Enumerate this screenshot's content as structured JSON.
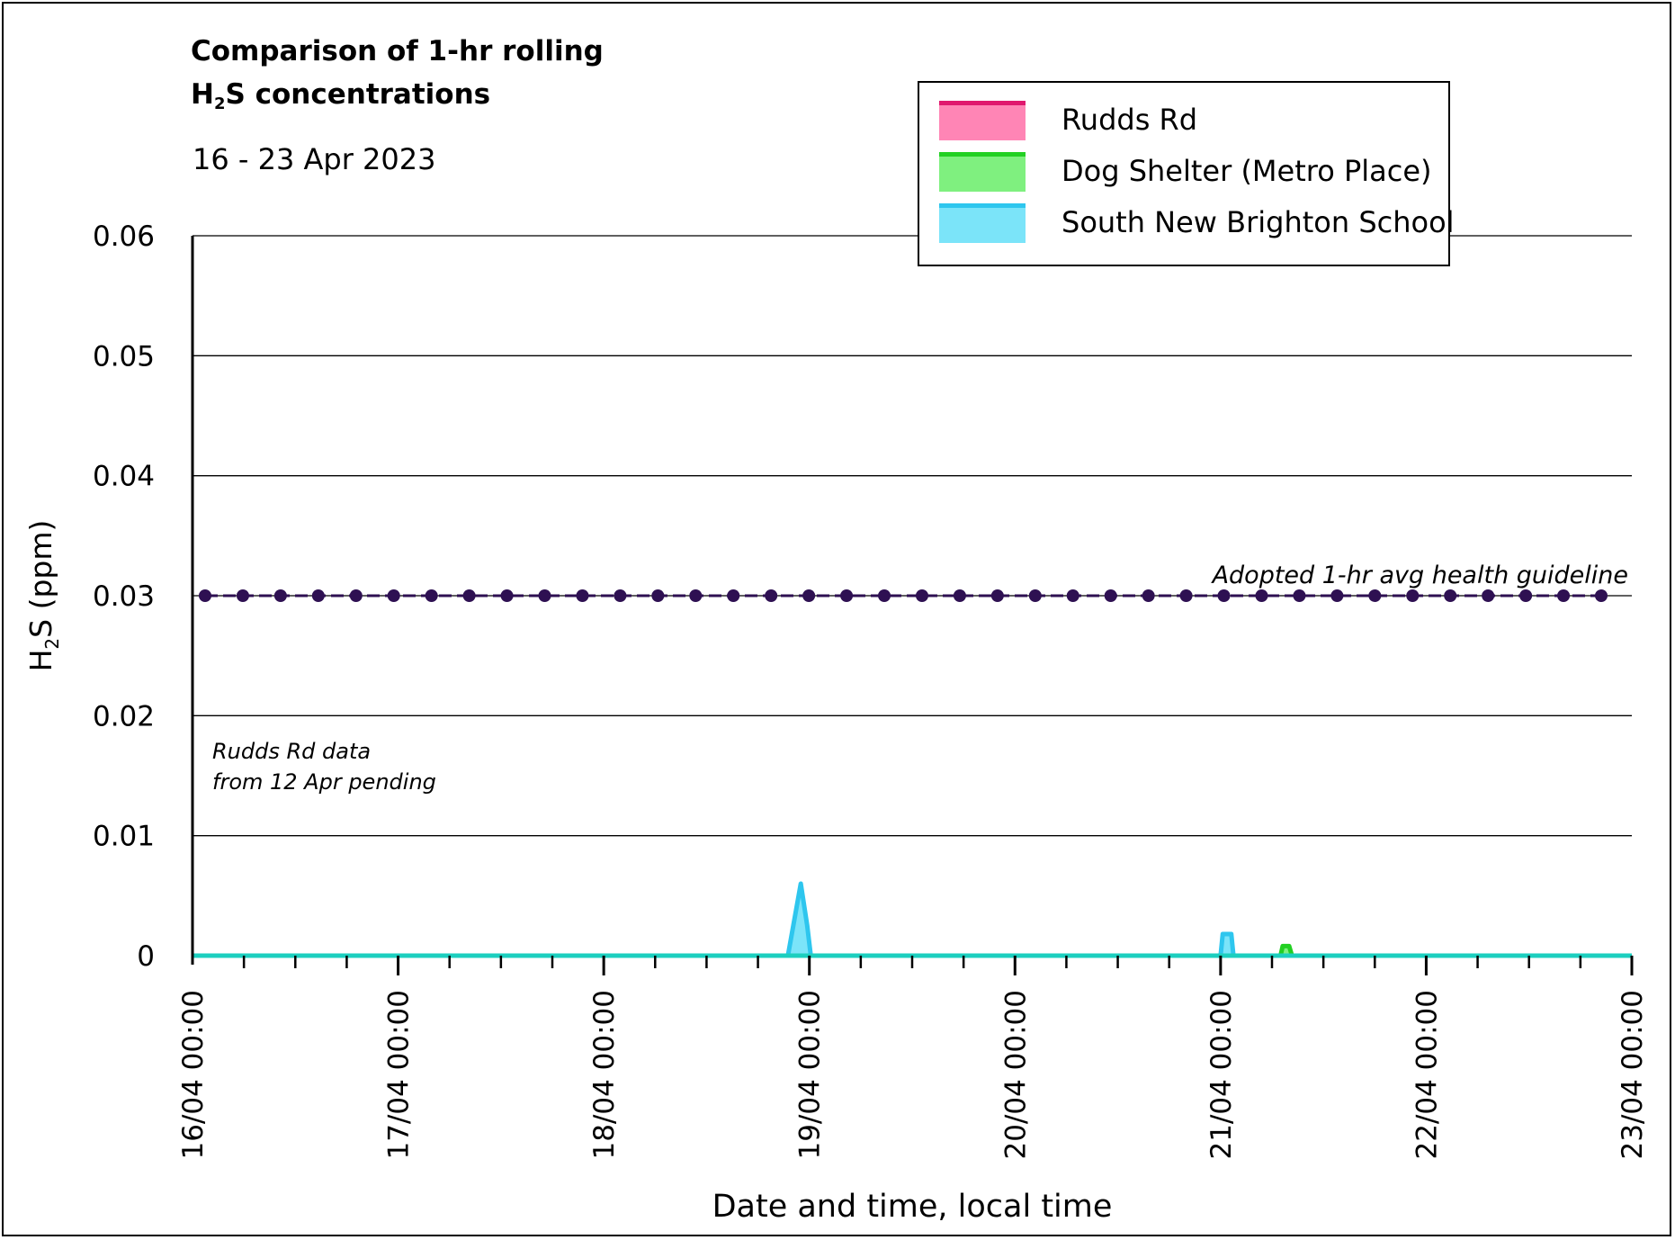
{
  "title_line1": "Comparison of 1-hr rolling",
  "title_line2_prefix": "H",
  "title_line2_sub": "2",
  "title_line2_suffix": "S concentrations",
  "subtitle": "16 - 23 Apr 2023",
  "legend": [
    {
      "label": "Rudds Rd",
      "line_color": "#e0186e",
      "fill_color": "#ff85b5"
    },
    {
      "label": "Dog Shelter (Metro Place)",
      "line_color": "#22d022",
      "fill_color": "#7ff07f"
    },
    {
      "label": "South New Brighton School",
      "line_color": "#2ec6ee",
      "fill_color": "#7be4f9"
    }
  ],
  "chart_data": {
    "type": "area",
    "xlabel": "Date and time, local time",
    "ylabel_prefix": "H",
    "ylabel_sub": "2",
    "ylabel_suffix": "S (ppm)",
    "ylim": [
      0,
      0.06
    ],
    "xlim": [
      "2023-04-16 00:00",
      "2023-04-23 00:00"
    ],
    "y_ticks": [
      "0",
      "0.01",
      "0.02",
      "0.03",
      "0.04",
      "0.05",
      "0.06"
    ],
    "x_ticks": [
      "16/04 00:00",
      "17/04 00:00",
      "18/04 00:00",
      "19/04 00:00",
      "20/04 00:00",
      "21/04 00:00",
      "22/04 00:00",
      "23/04 00:00"
    ],
    "grid": "horizontal",
    "series": [
      {
        "name": "Dog Shelter (Metro Place)",
        "points": [
          {
            "t": "2023-04-16 00:00",
            "v": 0
          },
          {
            "t": "2023-04-21 07:00",
            "v": 0
          },
          {
            "t": "2023-04-21 07:15",
            "v": 0.0008
          },
          {
            "t": "2023-04-21 08:00",
            "v": 0.0008
          },
          {
            "t": "2023-04-21 08:20",
            "v": 0
          },
          {
            "t": "2023-04-23 00:00",
            "v": 0
          }
        ]
      },
      {
        "name": "South New Brighton School",
        "points": [
          {
            "t": "2023-04-16 00:00",
            "v": 0
          },
          {
            "t": "2023-04-18 21:30",
            "v": 0
          },
          {
            "t": "2023-04-18 22:15",
            "v": 0.003
          },
          {
            "t": "2023-04-18 23:00",
            "v": 0.006
          },
          {
            "t": "2023-04-18 23:45",
            "v": 0.0025
          },
          {
            "t": "2023-04-19 00:10",
            "v": 0
          },
          {
            "t": "2023-04-21 00:00",
            "v": 0
          },
          {
            "t": "2023-04-21 00:15",
            "v": 0.0018
          },
          {
            "t": "2023-04-21 01:15",
            "v": 0.0018
          },
          {
            "t": "2023-04-21 01:30",
            "v": 0
          },
          {
            "t": "2023-04-23 00:00",
            "v": 0
          }
        ]
      }
    ],
    "guideline": {
      "value": 0.03,
      "label": "Adopted 1-hr avg health guideline",
      "color": "#2e1052"
    },
    "annotation_line1": "Rudds Rd data",
    "annotation_line2": "from 12 Apr pending"
  }
}
